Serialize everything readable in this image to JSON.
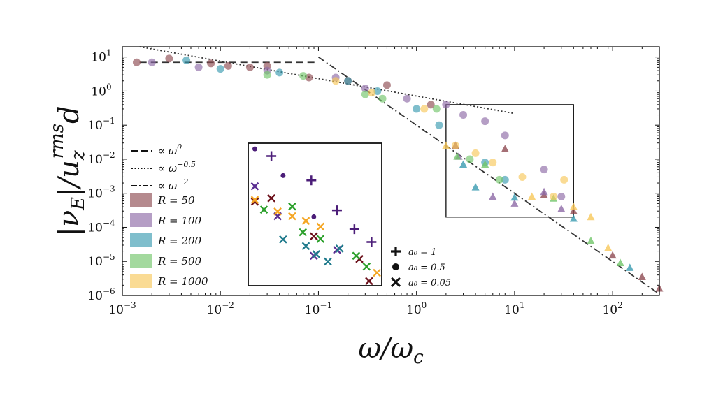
{
  "chart_data": {
    "type": "scatter",
    "title": "",
    "xlabel": "ω/ω_c",
    "ylabel": "|ν_E|/u_z^rms d",
    "xscale": "log",
    "yscale": "log",
    "xlim": [
      0.001,
      300
    ],
    "ylim": [
      1e-06,
      20
    ],
    "x_ticks": [
      "10^-3",
      "10^-2",
      "10^-1",
      "10^0",
      "10^1",
      "10^2"
    ],
    "y_ticks": [
      "10^-6",
      "10^-5",
      "10^-4",
      "10^-3",
      "10^-2",
      "10^-1",
      "10^0",
      "10^1"
    ],
    "grid": false,
    "colors": {
      "R50": "#8e4b52",
      "R100": "#8d6aa6",
      "R200": "#3a9bb0",
      "R500": "#72c56a",
      "R1000": "#f7c85a",
      "ins_a1": "#4b1d78",
      "ins_a05": "#4b1d78",
      "ins_R50": "#6b0f1a",
      "ins_R100": "#5a2d91",
      "ins_R200": "#1f7a8c",
      "ins_R500": "#2ca02c",
      "ins_R1000": "#f5a623"
    },
    "lines": [
      {
        "label": "∝ ω^0",
        "style": "dashed",
        "points": [
          [
            0.0015,
            7
          ],
          [
            0.1,
            7
          ]
        ]
      },
      {
        "label": "∝ ω^-0.5",
        "style": "dotted",
        "points": [
          [
            0.0015,
            20
          ],
          [
            10,
            0.22
          ]
        ]
      },
      {
        "label": "∝ ω^-2",
        "style": "dashdot",
        "points": [
          [
            0.1,
            10
          ],
          [
            300,
            1.1e-06
          ]
        ]
      }
    ],
    "legend": {
      "lines": [
        {
          "label": "∝ ω",
          "exp": "0",
          "style": "dashed"
        },
        {
          "label": "∝ ω",
          "exp": "−0.5",
          "style": "dotted"
        },
        {
          "label": "∝ ω",
          "exp": "−2",
          "style": "dashdot"
        }
      ],
      "series": [
        {
          "label": "R = 50",
          "color_key": "R50"
        },
        {
          "label": "R = 100",
          "color_key": "R100"
        },
        {
          "label": "R = 200",
          "color_key": "R200"
        },
        {
          "label": "R = 500",
          "color_key": "R500"
        },
        {
          "label": "R = 1000",
          "color_key": "R1000"
        }
      ]
    },
    "marker_legend": [
      {
        "marker": "plus",
        "label": "a₀ = 1"
      },
      {
        "marker": "dot",
        "label": "a₀ = 0.5"
      },
      {
        "marker": "x",
        "label": "a₀ = 0.05"
      }
    ],
    "zoom_box": {
      "x": [
        2,
        40
      ],
      "y": [
        0.0002,
        0.4
      ]
    },
    "main_series": [
      {
        "name": "R = 50",
        "color_key": "R50",
        "circles": [
          [
            0.0014,
            7
          ],
          [
            0.003,
            9
          ],
          [
            0.008,
            6.5
          ],
          [
            0.012,
            5.5
          ],
          [
            0.02,
            5
          ],
          [
            0.03,
            5.5
          ],
          [
            0.08,
            2.5
          ],
          [
            0.2,
            2
          ],
          [
            0.5,
            1.5
          ],
          [
            1.4,
            0.4
          ]
        ],
        "triangles": [
          [
            2.5,
            0.025
          ],
          [
            8,
            0.02
          ],
          [
            20,
            0.0009
          ],
          [
            40,
            0.0003
          ],
          [
            100,
            1.5e-05
          ],
          [
            200,
            3.5e-06
          ],
          [
            300,
            1.6e-06
          ]
        ]
      },
      {
        "name": "R = 100",
        "color_key": "R100",
        "circles": [
          [
            0.002,
            7
          ],
          [
            0.006,
            5
          ],
          [
            0.03,
            4
          ],
          [
            0.15,
            2.5
          ],
          [
            0.3,
            1.2
          ],
          [
            0.8,
            0.6
          ],
          [
            2,
            0.4
          ],
          [
            3,
            0.2
          ],
          [
            5,
            0.13
          ],
          [
            8,
            0.05
          ],
          [
            20,
            0.005
          ],
          [
            30,
            0.0008
          ]
        ],
        "triangles": [
          [
            2.7,
            0.012
          ],
          [
            6,
            0.0008
          ],
          [
            10,
            0.0005
          ],
          [
            20,
            0.0011
          ],
          [
            30,
            0.00035
          ]
        ]
      },
      {
        "name": "R = 200",
        "color_key": "R200",
        "circles": [
          [
            0.0045,
            8
          ],
          [
            0.01,
            4.5
          ],
          [
            0.04,
            3.5
          ],
          [
            0.2,
            2
          ],
          [
            0.4,
            1
          ],
          [
            1,
            0.3
          ],
          [
            1.7,
            0.1
          ],
          [
            5,
            0.008
          ],
          [
            8,
            0.0025
          ]
        ],
        "triangles": [
          [
            3,
            0.007
          ],
          [
            4,
            0.0015
          ],
          [
            10,
            0.00075
          ],
          [
            40,
            0.00018
          ],
          [
            150,
            6.5e-06
          ]
        ]
      },
      {
        "name": "R = 500",
        "color_key": "R500",
        "circles": [
          [
            0.03,
            3
          ],
          [
            0.07,
            2.8
          ],
          [
            0.3,
            0.8
          ],
          [
            0.45,
            0.6
          ],
          [
            1.6,
            0.3
          ],
          [
            3.5,
            0.01
          ],
          [
            7,
            0.0025
          ]
        ],
        "triangles": [
          [
            2.6,
            0.012
          ],
          [
            5,
            0.007
          ],
          [
            25,
            0.0007
          ],
          [
            60,
            4e-05
          ],
          [
            120,
            9e-06
          ]
        ]
      },
      {
        "name": "R = 1000",
        "color_key": "R1000",
        "circles": [
          [
            0.15,
            2
          ],
          [
            0.35,
            0.9
          ],
          [
            1.2,
            0.3
          ],
          [
            2.5,
            0.025
          ],
          [
            4,
            0.015
          ],
          [
            6,
            0.008
          ],
          [
            12,
            0.003
          ],
          [
            25,
            0.0008
          ],
          [
            32,
            0.0025
          ]
        ],
        "triangles": [
          [
            2,
            0.025
          ],
          [
            15,
            0.0008
          ],
          [
            40,
            0.0004
          ],
          [
            60,
            0.0002
          ],
          [
            90,
            2.5e-05
          ]
        ]
      }
    ],
    "inset_plus": [
      [
        0.03,
        0.018
      ],
      [
        0.08,
        0.0032
      ],
      [
        0.15,
        0.00038
      ],
      [
        0.23,
        0.0001
      ],
      [
        0.35,
        4e-05
      ]
    ],
    "inset_dots": [
      [
        0.02,
        0.03
      ],
      [
        0.04,
        0.0045
      ],
      [
        0.085,
        0.00024
      ]
    ],
    "inset_x": [
      {
        "color_key": "ins_R50",
        "points": [
          [
            0.02,
            0.0007
          ],
          [
            0.03,
            0.0009
          ],
          [
            0.085,
            6e-05
          ],
          [
            0.26,
            1.2e-05
          ],
          [
            0.33,
            2.5e-06
          ]
        ]
      },
      {
        "color_key": "ins_R100",
        "points": [
          [
            0.02,
            0.0021
          ],
          [
            0.035,
            0.00025
          ],
          [
            0.085,
            1.5e-05
          ],
          [
            0.15,
            2.3e-05
          ]
        ]
      },
      {
        "color_key": "ins_R200",
        "points": [
          [
            0.04,
            4.8e-05
          ],
          [
            0.07,
            3e-05
          ],
          [
            0.09,
            1.7e-05
          ],
          [
            0.12,
            1e-05
          ],
          [
            0.16,
            2.5e-05
          ]
        ]
      },
      {
        "color_key": "ins_R500",
        "points": [
          [
            0.025,
            0.0004
          ],
          [
            0.05,
            0.0005
          ],
          [
            0.065,
            8e-05
          ],
          [
            0.1,
            5e-05
          ],
          [
            0.24,
            1.5e-05
          ],
          [
            0.31,
            7e-06
          ]
        ]
      },
      {
        "color_key": "ins_R1000",
        "points": [
          [
            0.02,
            0.0008
          ],
          [
            0.035,
            0.00035
          ],
          [
            0.05,
            0.00025
          ],
          [
            0.07,
            0.00018
          ],
          [
            0.1,
            0.00012
          ],
          [
            0.4,
            4.5e-06
          ]
        ]
      }
    ]
  }
}
